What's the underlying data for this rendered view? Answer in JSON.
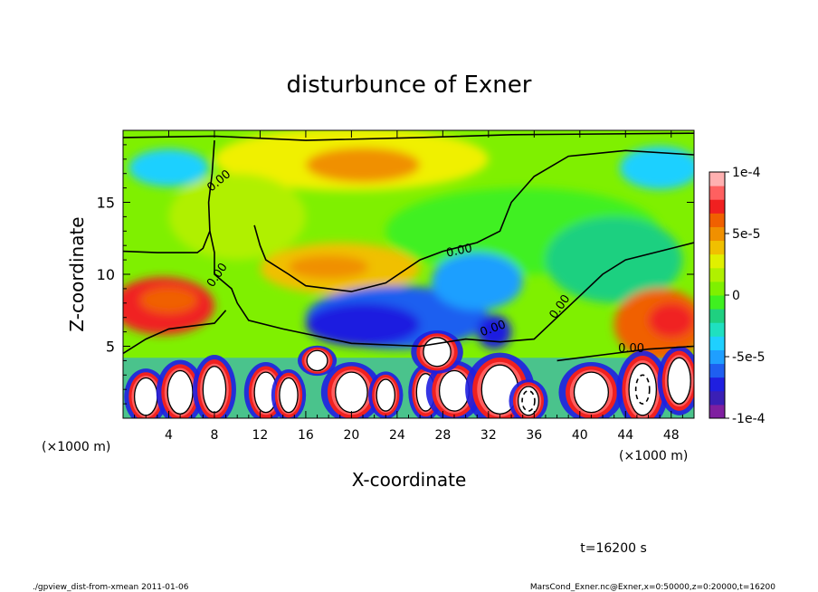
{
  "chart_data": {
    "type": "heatmap",
    "title": "disturbunce of Exner",
    "xlabel": "X-coordinate",
    "ylabel": "Z-coordinate",
    "x_unit_left": "(×1000 m)",
    "x_unit_right": "(×1000 m)",
    "xlim": [
      0,
      50
    ],
    "ylim": [
      0,
      20
    ],
    "x_ticks": [
      4,
      8,
      12,
      16,
      20,
      24,
      28,
      32,
      36,
      40,
      44,
      48
    ],
    "y_ticks": [
      5,
      10,
      15
    ],
    "contour_labels": [
      "0.00",
      "0.00",
      "0.00",
      "0.00",
      "0.00",
      "0.00"
    ],
    "colorbar": {
      "vmin": -0.0001,
      "vmax": 0.0001,
      "labels": [
        "1e-4",
        "5e-5",
        "0",
        "-5e-5",
        "-1e-4"
      ],
      "label_values": [
        0.0001,
        5e-05,
        0,
        -5e-05,
        -0.0001
      ],
      "colors": [
        "#7f1fa0",
        "#3a1fb5",
        "#1f1fe0",
        "#1f5ff0",
        "#1f9fff",
        "#1fd0ff",
        "#1fe0c0",
        "#1fd080",
        "#3ff020",
        "#7ff000",
        "#b0f000",
        "#e0f000",
        "#f0c000",
        "#f09000",
        "#f06000",
        "#f02020",
        "#ff6060",
        "#ffb0b0"
      ]
    },
    "grid": false,
    "annotation_time": "t=16200 s"
  },
  "footer": {
    "left": "./gpview_dist-from-xmean  2011-01-06",
    "right": "MarsCond_Exner.nc@Exner,x=0:50000,z=0:20000,t=16200"
  }
}
